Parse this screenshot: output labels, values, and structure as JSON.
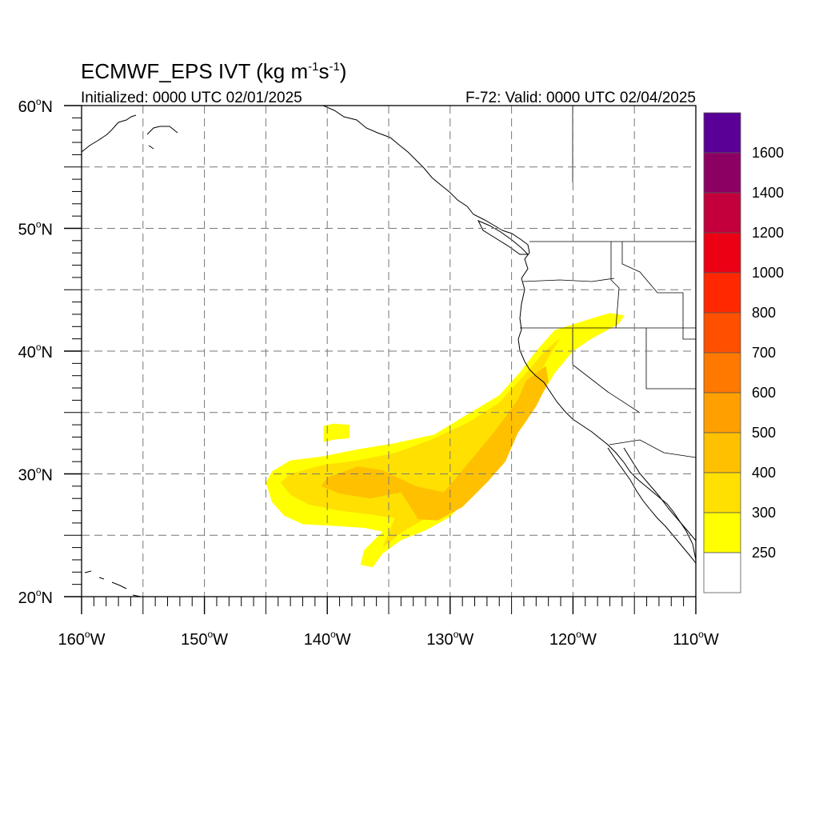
{
  "map": {
    "title_main": "ECMWF_EPS IVT (kg m",
    "title_exp1": "-1",
    "title_mid": "s",
    "title_exp2": "-1",
    "title_close": ")",
    "initialized": "Initialized: 0000 UTC 02/01/2025",
    "valid": "F-72: Valid: 0000 UTC 02/04/2025",
    "lon_range": [
      -160,
      -110
    ],
    "lat_range": [
      20,
      60
    ],
    "lon_labels": [
      {
        "lon": -160,
        "deg": "160",
        "hemi": "W"
      },
      {
        "lon": -150,
        "deg": "150",
        "hemi": "W"
      },
      {
        "lon": -140,
        "deg": "140",
        "hemi": "W"
      },
      {
        "lon": -130,
        "deg": "130",
        "hemi": "W"
      },
      {
        "lon": -120,
        "deg": "120",
        "hemi": "W"
      },
      {
        "lon": -110,
        "deg": "110",
        "hemi": "W"
      }
    ],
    "lat_labels": [
      {
        "lat": 60,
        "deg": "60",
        "hemi": "N"
      },
      {
        "lat": 50,
        "deg": "50",
        "hemi": "N"
      },
      {
        "lat": 40,
        "deg": "40",
        "hemi": "N"
      },
      {
        "lat": 30,
        "deg": "30",
        "hemi": "N"
      },
      {
        "lat": 20,
        "deg": "20",
        "hemi": "N"
      }
    ],
    "gridlines": "dashed every 5 degrees",
    "colors": {
      "ivt_250_300": "#ffff00",
      "ivt_300_400": "#ffe000",
      "ivt_400_500": "#ffc000"
    }
  },
  "colorbar": {
    "labels": [
      "1600",
      "1400",
      "1200",
      "1000",
      "800",
      "700",
      "600",
      "500",
      "400",
      "300",
      "250"
    ],
    "colors_top_to_bottom": [
      "#5a0096",
      "#8c0064",
      "#c3003c",
      "#eb0014",
      "#ff2800",
      "#ff5000",
      "#ff7800",
      "#ffa000",
      "#ffc000",
      "#ffe000",
      "#ffff00",
      "#ffffff"
    ]
  },
  "chart_data": {
    "type": "heatmap",
    "variable": "IVT",
    "units": "kg m-1 s-1",
    "x_range": [
      -160,
      -110
    ],
    "y_range": [
      20,
      60
    ],
    "levels": [
      250,
      300,
      400,
      500,
      600,
      700,
      800,
      1000,
      1200,
      1400,
      1600
    ],
    "regions": [
      {
        "level_min": 250,
        "polygon": [
          [
            -140.3,
            33.9
          ],
          [
            -139.5,
            34.1
          ],
          [
            -138.2,
            34.0
          ],
          [
            -138.2,
            32.9
          ],
          [
            -139.4,
            32.8
          ],
          [
            -140.3,
            32.6
          ]
        ]
      },
      {
        "level_min": 250,
        "polygon": [
          [
            -144.5,
            30.2
          ],
          [
            -143.0,
            31.1
          ],
          [
            -140.5,
            31.4
          ],
          [
            -137.5,
            32.0
          ],
          [
            -134.5,
            32.5
          ],
          [
            -131.3,
            33.2
          ],
          [
            -128.5,
            34.9
          ],
          [
            -126.0,
            36.4
          ],
          [
            -124.3,
            38.3
          ],
          [
            -123.0,
            40.0
          ],
          [
            -121.5,
            41.7
          ],
          [
            -119.0,
            42.5
          ],
          [
            -117.0,
            43.1
          ],
          [
            -115.8,
            42.9
          ],
          [
            -116.3,
            42.2
          ],
          [
            -118.5,
            41.0
          ],
          [
            -120.0,
            40.0
          ],
          [
            -121.5,
            38.2
          ],
          [
            -122.8,
            36.0
          ],
          [
            -124.0,
            34.0
          ],
          [
            -125.5,
            32.2
          ],
          [
            -126.5,
            30.4
          ],
          [
            -128.5,
            28.1
          ],
          [
            -130.0,
            26.5
          ],
          [
            -132.0,
            25.4
          ],
          [
            -134.0,
            24.6
          ],
          [
            -135.5,
            23.5
          ],
          [
            -136.3,
            22.4
          ],
          [
            -137.3,
            22.6
          ],
          [
            -137.0,
            23.8
          ],
          [
            -135.5,
            25.3
          ],
          [
            -137.0,
            25.6
          ],
          [
            -140.0,
            25.8
          ],
          [
            -142.0,
            25.9
          ],
          [
            -143.5,
            26.6
          ],
          [
            -144.5,
            27.7
          ],
          [
            -145.0,
            29.3
          ]
        ]
      },
      {
        "level_min": 300,
        "polygon": [
          [
            -143.0,
            30.0
          ],
          [
            -140.5,
            30.7
          ],
          [
            -137.5,
            31.1
          ],
          [
            -134.5,
            31.7
          ],
          [
            -131.5,
            32.8
          ],
          [
            -128.5,
            34.2
          ],
          [
            -126.0,
            35.8
          ],
          [
            -124.0,
            38.0
          ],
          [
            -122.3,
            40.0
          ],
          [
            -121.0,
            41.1
          ],
          [
            -121.7,
            40.0
          ],
          [
            -122.7,
            38.2
          ],
          [
            -123.8,
            35.8
          ],
          [
            -125.3,
            33.4
          ],
          [
            -126.8,
            30.8
          ],
          [
            -128.5,
            28.8
          ],
          [
            -130.2,
            27.2
          ],
          [
            -132.3,
            26.2
          ],
          [
            -134.0,
            25.2
          ],
          [
            -135.5,
            24.0
          ],
          [
            -134.5,
            26.4
          ],
          [
            -136.5,
            26.7
          ],
          [
            -139.0,
            27.0
          ],
          [
            -141.5,
            27.5
          ],
          [
            -143.0,
            28.3
          ],
          [
            -143.8,
            29.3
          ]
        ]
      },
      {
        "level_min": 400,
        "polygon": [
          [
            -140.0,
            29.7
          ],
          [
            -137.5,
            30.6
          ],
          [
            -135.5,
            30.3
          ],
          [
            -132.8,
            29.0
          ],
          [
            -130.5,
            28.5
          ],
          [
            -128.0,
            31.5
          ],
          [
            -126.5,
            33.3
          ],
          [
            -124.5,
            36.0
          ],
          [
            -123.8,
            37.6
          ],
          [
            -122.2,
            38.8
          ],
          [
            -122.0,
            37.5
          ],
          [
            -123.0,
            35.5
          ],
          [
            -124.5,
            33.3
          ],
          [
            -125.5,
            31.0
          ],
          [
            -127.0,
            29.3
          ],
          [
            -129.0,
            27.3
          ],
          [
            -131.0,
            26.2
          ],
          [
            -132.6,
            26.3
          ],
          [
            -134.0,
            28.5
          ],
          [
            -136.5,
            28.0
          ],
          [
            -139.0,
            28.4
          ],
          [
            -140.5,
            29.0
          ]
        ]
      }
    ]
  }
}
